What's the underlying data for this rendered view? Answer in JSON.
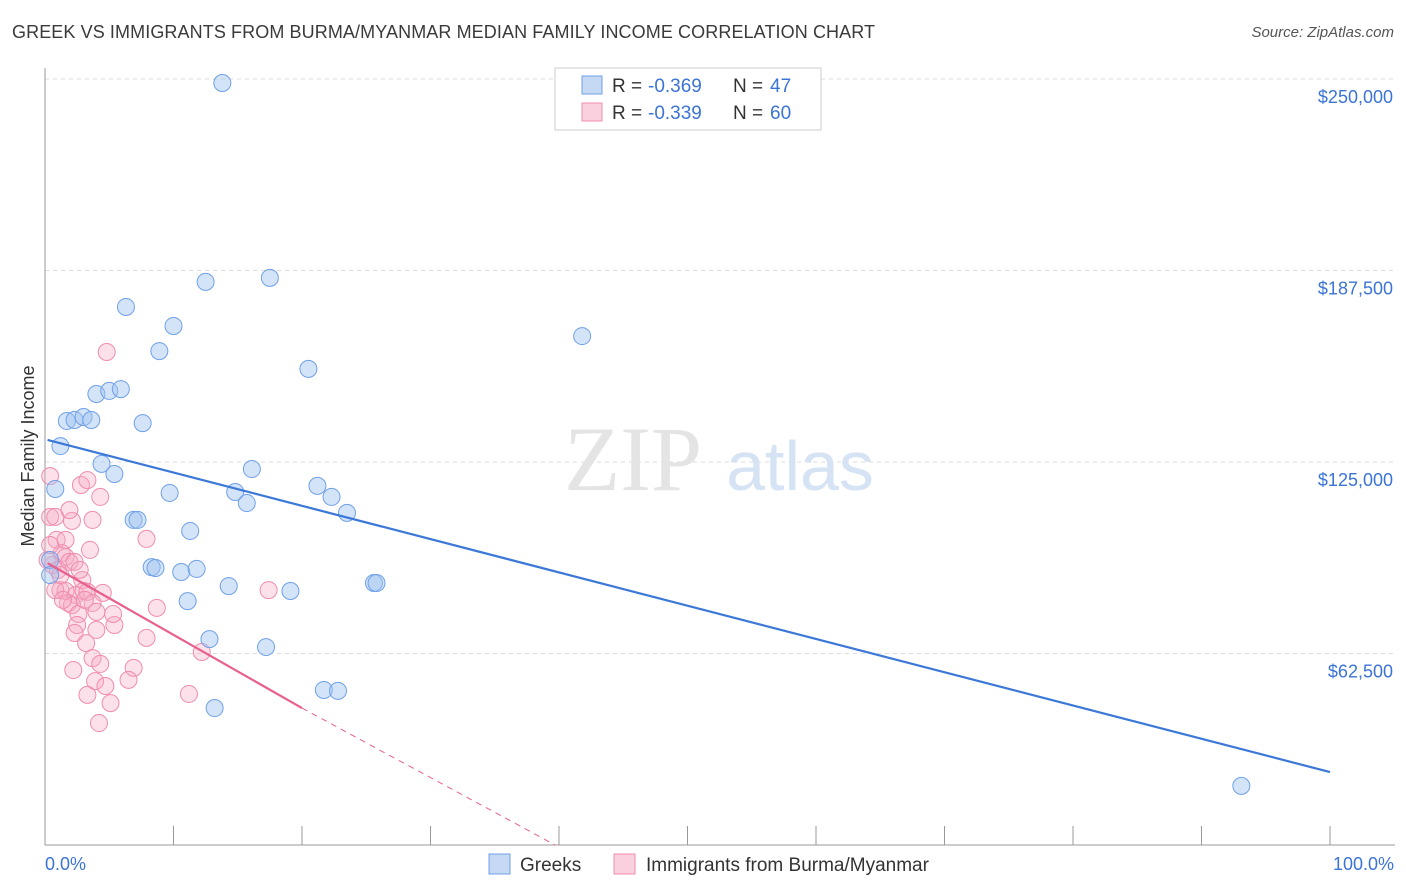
{
  "title": "GREEK VS IMMIGRANTS FROM BURMA/MYANMAR MEDIAN FAMILY INCOME CORRELATION CHART",
  "source": "Source: ZipAtlas.com",
  "watermark": "ZIPatlas",
  "chart_data": {
    "type": "scatter",
    "xlabel": "",
    "ylabel": "Median Family Income",
    "xlim": [
      0,
      100
    ],
    "ylim": [
      0,
      250000
    ],
    "x_tick_labels": [
      "0.0%",
      "100.0%"
    ],
    "y_ticks": [
      62500,
      125000,
      187500,
      250000
    ],
    "y_tick_labels": [
      "$62,500",
      "$125,000",
      "$187,500",
      "$250,000"
    ],
    "grid": true,
    "legend_top": [
      {
        "r_label": "R = ",
        "r": "-0.369",
        "n_label": "N = ",
        "n": "47",
        "color": "#6fa0e8"
      },
      {
        "r_label": "R = ",
        "r": "-0.339",
        "n_label": "N = ",
        "n": "60",
        "color": "#f08cae"
      }
    ],
    "legend_bottom": [
      "Greeks",
      "Immigrants from Burma/Myanmar"
    ],
    "series": [
      {
        "name": "Greeks",
        "color": "#3b78d8",
        "trend": {
          "x0": 0.2,
          "y0": 132200,
          "x1": 100,
          "y1": 23800
        },
        "points": [
          [
            13.8,
            248700
          ],
          [
            6.3,
            175600
          ],
          [
            10.0,
            169400
          ],
          [
            8.9,
            161200
          ],
          [
            12.5,
            183800
          ],
          [
            17.5,
            185100
          ],
          [
            41.8,
            166100
          ],
          [
            20.5,
            155400
          ],
          [
            4.0,
            147200
          ],
          [
            5.0,
            148200
          ],
          [
            5.9,
            148800
          ],
          [
            1.7,
            138400
          ],
          [
            2.3,
            138700
          ],
          [
            3.0,
            139700
          ],
          [
            3.6,
            138700
          ],
          [
            7.6,
            137700
          ],
          [
            1.2,
            130200
          ],
          [
            4.4,
            124400
          ],
          [
            5.4,
            121100
          ],
          [
            0.8,
            116200
          ],
          [
            16.1,
            122700
          ],
          [
            21.2,
            117200
          ],
          [
            9.7,
            114900
          ],
          [
            14.8,
            115200
          ],
          [
            22.3,
            113600
          ],
          [
            15.7,
            111600
          ],
          [
            23.5,
            108400
          ],
          [
            6.9,
            106100
          ],
          [
            7.2,
            106100
          ],
          [
            11.3,
            102500
          ],
          [
            8.3,
            90700
          ],
          [
            8.6,
            90400
          ],
          [
            10.6,
            89100
          ],
          [
            11.8,
            90100
          ],
          [
            14.3,
            84500
          ],
          [
            19.1,
            82900
          ],
          [
            25.6,
            85500
          ],
          [
            25.8,
            85500
          ],
          [
            11.1,
            79600
          ],
          [
            12.8,
            67200
          ],
          [
            17.2,
            64600
          ],
          [
            21.7,
            50600
          ],
          [
            22.8,
            50300
          ],
          [
            13.2,
            44700
          ],
          [
            93.1,
            19300
          ],
          [
            0.4,
            93000
          ],
          [
            0.4,
            88100
          ]
        ]
      },
      {
        "name": "Immigrants from Burma/Myanmar",
        "color": "#e8608c",
        "trend": {
          "x0": 0.2,
          "y0": 92000,
          "x1": 20,
          "y1": 44700,
          "dash_to_x": 39.7,
          "dash_to_y": 0
        },
        "points": [
          [
            4.8,
            160900
          ],
          [
            0.4,
            120400
          ],
          [
            2.8,
            117500
          ],
          [
            3.3,
            119100
          ],
          [
            4.3,
            113600
          ],
          [
            0.4,
            107100
          ],
          [
            0.8,
            107100
          ],
          [
            2.1,
            105800
          ],
          [
            3.7,
            106100
          ],
          [
            0.9,
            99600
          ],
          [
            7.9,
            99900
          ],
          [
            3.5,
            96300
          ],
          [
            1.3,
            95300
          ],
          [
            1.6,
            94000
          ],
          [
            1.9,
            92400
          ],
          [
            0.6,
            91400
          ],
          [
            1.0,
            89800
          ],
          [
            2.3,
            92400
          ],
          [
            2.9,
            86500
          ],
          [
            1.2,
            83200
          ],
          [
            1.6,
            82900
          ],
          [
            2.4,
            81600
          ],
          [
            3.0,
            82900
          ],
          [
            3.3,
            82600
          ],
          [
            4.5,
            82300
          ],
          [
            1.8,
            79000
          ],
          [
            2.1,
            78300
          ],
          [
            3.7,
            79000
          ],
          [
            2.6,
            75400
          ],
          [
            4.0,
            76100
          ],
          [
            8.7,
            77400
          ],
          [
            5.4,
            71800
          ],
          [
            2.5,
            71800
          ],
          [
            4.0,
            70200
          ],
          [
            2.3,
            69200
          ],
          [
            7.9,
            67600
          ],
          [
            3.2,
            65900
          ],
          [
            17.4,
            83200
          ],
          [
            12.2,
            63000
          ],
          [
            3.7,
            61000
          ],
          [
            4.3,
            59100
          ],
          [
            6.9,
            57800
          ],
          [
            2.2,
            57100
          ],
          [
            3.9,
            53500
          ],
          [
            6.5,
            53900
          ],
          [
            4.7,
            51900
          ],
          [
            3.3,
            49000
          ],
          [
            11.2,
            49300
          ],
          [
            5.1,
            46300
          ],
          [
            4.2,
            39800
          ],
          [
            0.2,
            93000
          ],
          [
            0.4,
            97900
          ],
          [
            0.8,
            83200
          ],
          [
            1.4,
            80000
          ],
          [
            2.7,
            89800
          ],
          [
            1.9,
            109300
          ],
          [
            5.3,
            75400
          ],
          [
            1.6,
            99600
          ],
          [
            3.1,
            80000
          ],
          [
            1.2,
            88100
          ]
        ]
      }
    ]
  }
}
